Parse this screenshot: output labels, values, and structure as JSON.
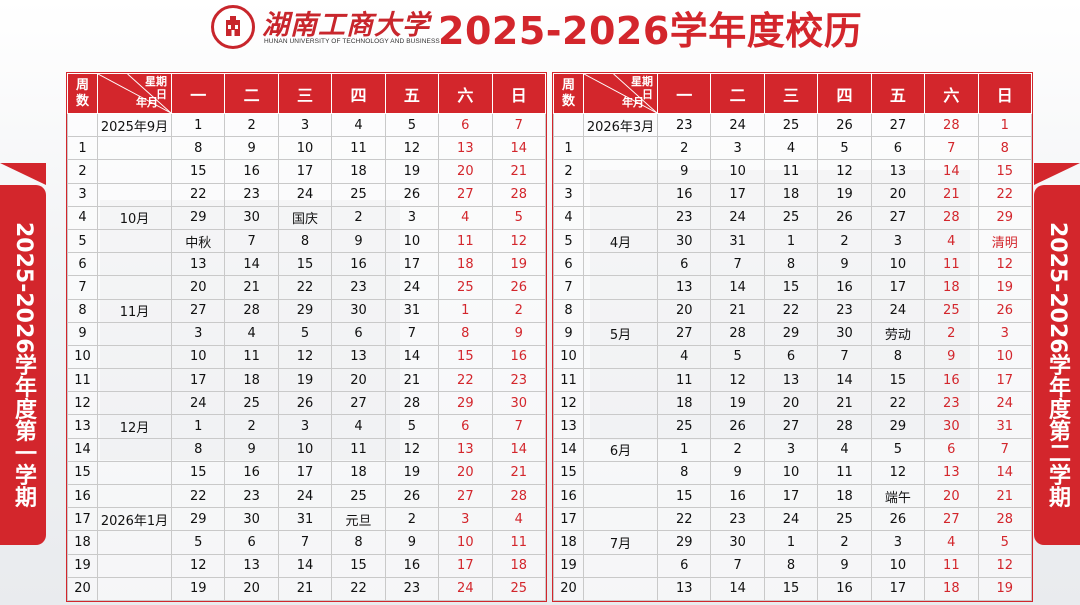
{
  "header": {
    "university_cn": "湖南工商大学",
    "university_en": "HUNAN UNIVERSITY OF TECHNOLOGY AND BUSINESS",
    "title": "2025-2026学年度校历"
  },
  "side_labels": {
    "left": "2025-2026学年度第一学期",
    "right": "2025-2026学年度第二学期"
  },
  "table_headers": {
    "week_no": "周数",
    "weekday": "星期",
    "day": "日",
    "year_month": "年月",
    "days": [
      "一",
      "二",
      "三",
      "四",
      "五",
      "六",
      "日"
    ]
  },
  "colors": {
    "accent": "#d3262c"
  },
  "semester1": {
    "rows": [
      {
        "week": "",
        "month": "2025年9月",
        "days": [
          "1",
          "2",
          "3",
          "4",
          "5",
          "6",
          "7"
        ]
      },
      {
        "week": "1",
        "month": "",
        "days": [
          "8",
          "9",
          "10",
          "11",
          "12",
          "13",
          "14"
        ]
      },
      {
        "week": "2",
        "month": "",
        "days": [
          "15",
          "16",
          "17",
          "18",
          "19",
          "20",
          "21"
        ]
      },
      {
        "week": "3",
        "month": "",
        "days": [
          "22",
          "23",
          "24",
          "25",
          "26",
          "27",
          "28"
        ]
      },
      {
        "week": "4",
        "month": "10月",
        "days": [
          "29",
          "30",
          "国庆",
          "2",
          "3",
          "4",
          "5"
        ]
      },
      {
        "week": "5",
        "month": "",
        "days": [
          "中秋",
          "7",
          "8",
          "9",
          "10",
          "11",
          "12"
        ]
      },
      {
        "week": "6",
        "month": "",
        "days": [
          "13",
          "14",
          "15",
          "16",
          "17",
          "18",
          "19"
        ]
      },
      {
        "week": "7",
        "month": "",
        "days": [
          "20",
          "21",
          "22",
          "23",
          "24",
          "25",
          "26"
        ]
      },
      {
        "week": "8",
        "month": "11月",
        "days": [
          "27",
          "28",
          "29",
          "30",
          "31",
          "1",
          "2"
        ]
      },
      {
        "week": "9",
        "month": "",
        "days": [
          "3",
          "4",
          "5",
          "6",
          "7",
          "8",
          "9"
        ]
      },
      {
        "week": "10",
        "month": "",
        "days": [
          "10",
          "11",
          "12",
          "13",
          "14",
          "15",
          "16"
        ]
      },
      {
        "week": "11",
        "month": "",
        "days": [
          "17",
          "18",
          "19",
          "20",
          "21",
          "22",
          "23"
        ]
      },
      {
        "week": "12",
        "month": "",
        "days": [
          "24",
          "25",
          "26",
          "27",
          "28",
          "29",
          "30"
        ]
      },
      {
        "week": "13",
        "month": "12月",
        "days": [
          "1",
          "2",
          "3",
          "4",
          "5",
          "6",
          "7"
        ]
      },
      {
        "week": "14",
        "month": "",
        "days": [
          "8",
          "9",
          "10",
          "11",
          "12",
          "13",
          "14"
        ]
      },
      {
        "week": "15",
        "month": "",
        "days": [
          "15",
          "16",
          "17",
          "18",
          "19",
          "20",
          "21"
        ]
      },
      {
        "week": "16",
        "month": "",
        "days": [
          "22",
          "23",
          "24",
          "25",
          "26",
          "27",
          "28"
        ]
      },
      {
        "week": "17",
        "month": "2026年1月",
        "days": [
          "29",
          "30",
          "31",
          "元旦",
          "2",
          "3",
          "4"
        ]
      },
      {
        "week": "18",
        "month": "",
        "days": [
          "5",
          "6",
          "7",
          "8",
          "9",
          "10",
          "11"
        ]
      },
      {
        "week": "19",
        "month": "",
        "days": [
          "12",
          "13",
          "14",
          "15",
          "16",
          "17",
          "18"
        ]
      },
      {
        "week": "20",
        "month": "",
        "days": [
          "19",
          "20",
          "21",
          "22",
          "23",
          "24",
          "25"
        ]
      }
    ]
  },
  "semester2": {
    "rows": [
      {
        "week": "",
        "month": "2026年3月",
        "days": [
          "23",
          "24",
          "25",
          "26",
          "27",
          "28",
          "1"
        ]
      },
      {
        "week": "1",
        "month": "",
        "days": [
          "2",
          "3",
          "4",
          "5",
          "6",
          "7",
          "8"
        ]
      },
      {
        "week": "2",
        "month": "",
        "days": [
          "9",
          "10",
          "11",
          "12",
          "13",
          "14",
          "15"
        ]
      },
      {
        "week": "3",
        "month": "",
        "days": [
          "16",
          "17",
          "18",
          "19",
          "20",
          "21",
          "22"
        ]
      },
      {
        "week": "4",
        "month": "",
        "days": [
          "23",
          "24",
          "25",
          "26",
          "27",
          "28",
          "29"
        ]
      },
      {
        "week": "5",
        "month": "4月",
        "days": [
          "30",
          "31",
          "1",
          "2",
          "3",
          "4",
          "清明"
        ]
      },
      {
        "week": "6",
        "month": "",
        "days": [
          "6",
          "7",
          "8",
          "9",
          "10",
          "11",
          "12"
        ]
      },
      {
        "week": "7",
        "month": "",
        "days": [
          "13",
          "14",
          "15",
          "16",
          "17",
          "18",
          "19"
        ]
      },
      {
        "week": "8",
        "month": "",
        "days": [
          "20",
          "21",
          "22",
          "23",
          "24",
          "25",
          "26"
        ]
      },
      {
        "week": "9",
        "month": "5月",
        "days": [
          "27",
          "28",
          "29",
          "30",
          "劳动",
          "2",
          "3"
        ]
      },
      {
        "week": "10",
        "month": "",
        "days": [
          "4",
          "5",
          "6",
          "7",
          "8",
          "9",
          "10"
        ]
      },
      {
        "week": "11",
        "month": "",
        "days": [
          "11",
          "12",
          "13",
          "14",
          "15",
          "16",
          "17"
        ]
      },
      {
        "week": "12",
        "month": "",
        "days": [
          "18",
          "19",
          "20",
          "21",
          "22",
          "23",
          "24"
        ]
      },
      {
        "week": "13",
        "month": "",
        "days": [
          "25",
          "26",
          "27",
          "28",
          "29",
          "30",
          "31"
        ]
      },
      {
        "week": "14",
        "month": "6月",
        "days": [
          "1",
          "2",
          "3",
          "4",
          "5",
          "6",
          "7"
        ]
      },
      {
        "week": "15",
        "month": "",
        "days": [
          "8",
          "9",
          "10",
          "11",
          "12",
          "13",
          "14"
        ]
      },
      {
        "week": "16",
        "month": "",
        "days": [
          "15",
          "16",
          "17",
          "18",
          "端午",
          "20",
          "21"
        ]
      },
      {
        "week": "17",
        "month": "",
        "days": [
          "22",
          "23",
          "24",
          "25",
          "26",
          "27",
          "28"
        ]
      },
      {
        "week": "18",
        "month": "7月",
        "days": [
          "29",
          "30",
          "1",
          "2",
          "3",
          "4",
          "5"
        ]
      },
      {
        "week": "19",
        "month": "",
        "days": [
          "6",
          "7",
          "8",
          "9",
          "10",
          "11",
          "12"
        ]
      },
      {
        "week": "20",
        "month": "",
        "days": [
          "13",
          "14",
          "15",
          "16",
          "17",
          "18",
          "19"
        ]
      }
    ]
  }
}
